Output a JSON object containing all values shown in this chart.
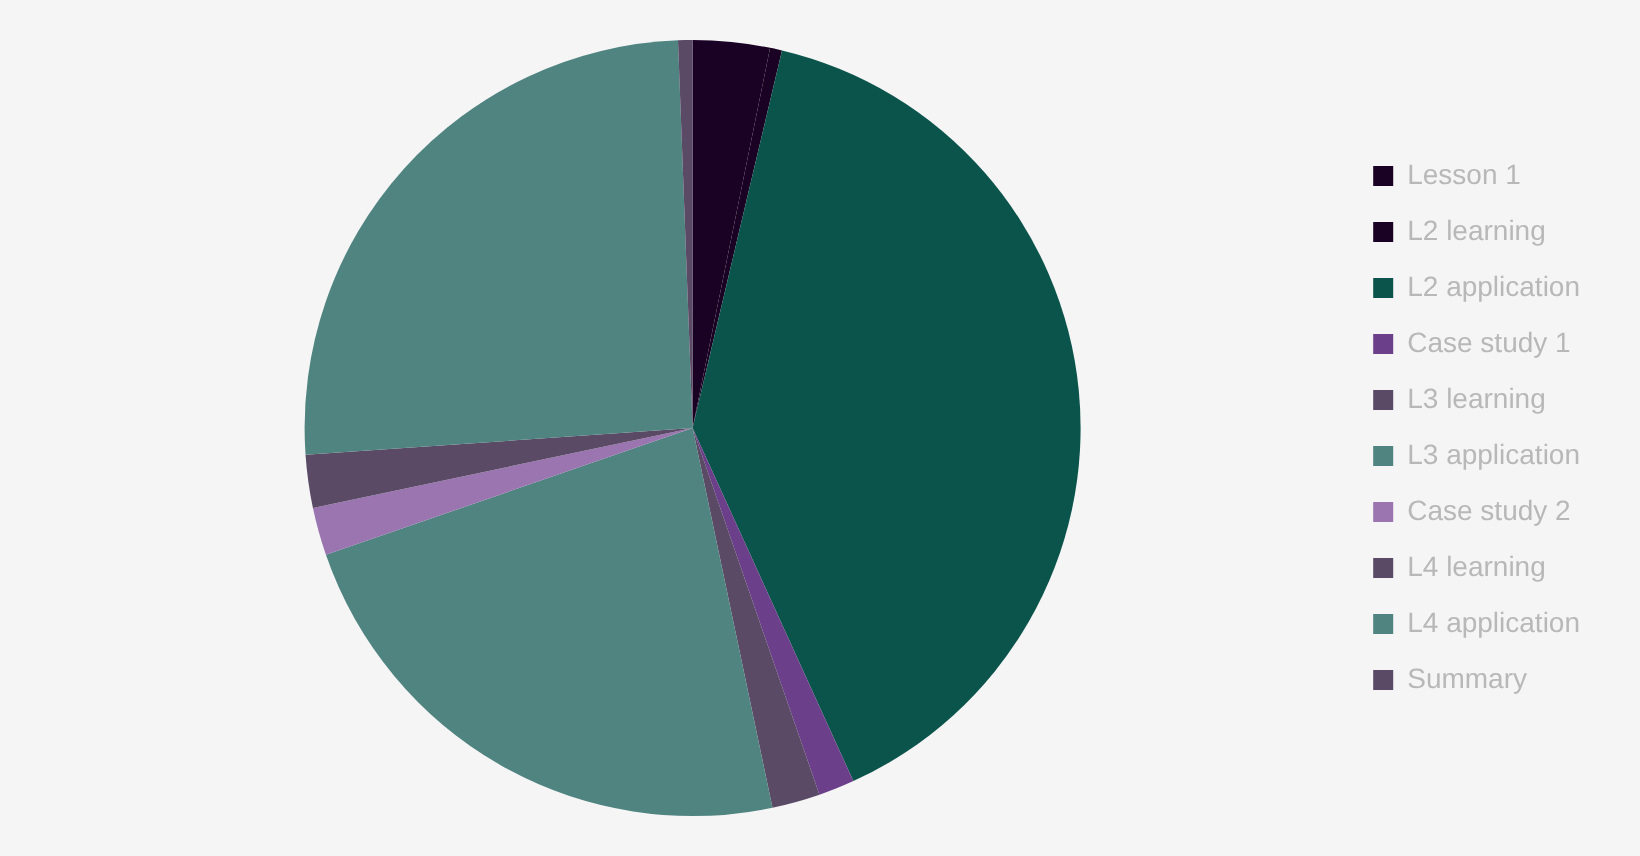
{
  "chart_data": {
    "type": "pie",
    "categories": [
      "Lesson 1",
      "L2 learning",
      "L2 application",
      "Case study 1",
      "L3 learning",
      "L3 application",
      "Case study 2",
      "L4 learning",
      "L4 application",
      "Summary"
    ],
    "values": [
      3.2,
      0.5,
      39.5,
      1.5,
      2,
      23,
      2,
      2.2,
      25.5,
      0.6
    ],
    "colors": [
      "#1a0224",
      "#1a0224",
      "#0b544c",
      "#6c3f8a",
      "#5a4a66",
      "#4f8480",
      "#9a75b0",
      "#5a4a66",
      "#4f8480",
      "#5a4a66"
    ],
    "legend": "right"
  }
}
